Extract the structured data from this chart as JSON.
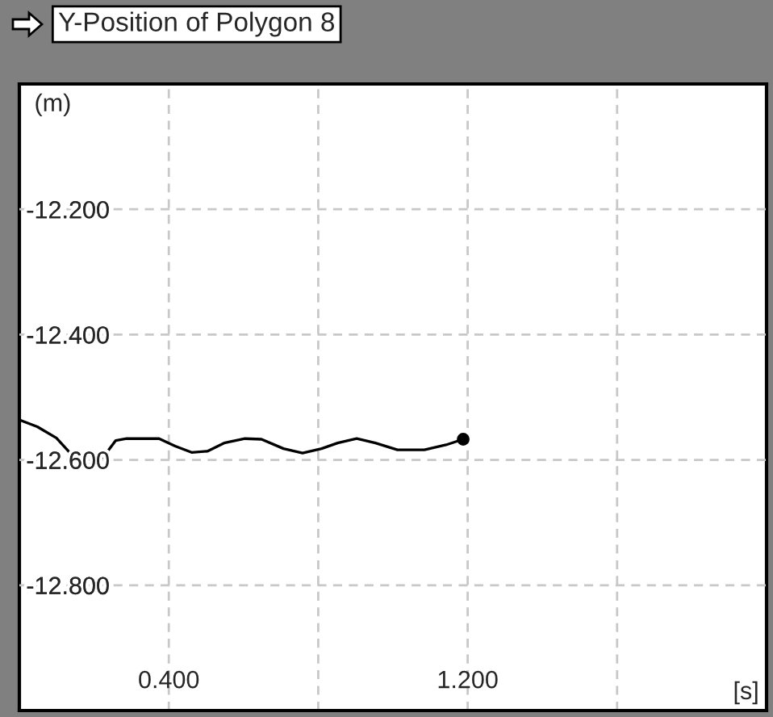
{
  "chart_data": {
    "type": "line",
    "title": "Y-Position of Polygon 8",
    "xlabel": "[s]",
    "ylabel": "(m)",
    "series": [
      {
        "color": "#000000",
        "x": [
          0,
          0.048,
          0.099,
          0.142,
          0.178,
          0.214,
          0.258,
          0.287,
          0.374,
          0.417,
          0.461,
          0.504,
          0.548,
          0.604,
          0.648,
          0.707,
          0.758,
          0.809,
          0.852,
          0.903,
          0.953,
          1.012,
          1.084,
          1.142,
          1.188
        ],
        "values": [
          -12.536,
          -12.547,
          -12.565,
          -12.593,
          -12.608,
          -12.604,
          -12.569,
          -12.566,
          -12.566,
          -12.578,
          -12.588,
          -12.586,
          -12.573,
          -12.566,
          -12.567,
          -12.582,
          -12.589,
          -12.582,
          -12.573,
          -12.566,
          -12.573,
          -12.584,
          -12.584,
          -12.576,
          -12.567
        ]
      },
      {
        "type": "scatter",
        "marker": "circle",
        "color": "#000000",
        "x": [
          1.188
        ],
        "values": [
          -12.567
        ]
      }
    ],
    "xlim": [
      0,
      2.0
    ],
    "ylim": [
      -13.0,
      -12.0
    ],
    "xticks": [
      {
        "value": 0.4,
        "label": "0.400"
      },
      {
        "value": 0.8,
        "label": null
      },
      {
        "value": 1.2,
        "label": "1.200"
      },
      {
        "value": 1.6,
        "label": null
      }
    ],
    "yticks": [
      {
        "value": -12.8,
        "label": "-12.800"
      },
      {
        "value": -12.6,
        "label": "-12.600"
      },
      {
        "value": -12.4,
        "label": "-12.400"
      },
      {
        "value": -12.2,
        "label": "-12.200"
      }
    ],
    "grid": true,
    "line_style": "solid"
  }
}
